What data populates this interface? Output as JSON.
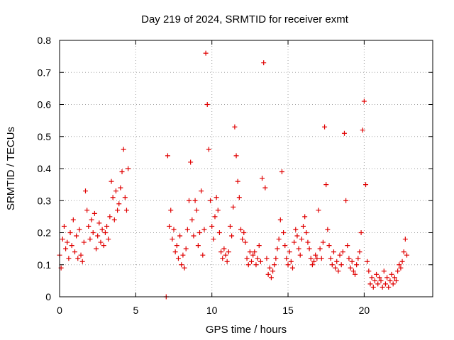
{
  "chart_data": {
    "type": "scatter",
    "title": "Day 219 of 2024, SRMTID for receiver exmt",
    "xlabel": "GPS time / hours",
    "ylabel": "SRMTID / TECUs",
    "xlim": [
      0,
      24.5
    ],
    "ylim": [
      0,
      0.8
    ],
    "xticks": [
      0,
      5,
      10,
      15,
      20
    ],
    "yticks": [
      0,
      0.1,
      0.2,
      0.3,
      0.4,
      0.5,
      0.6,
      0.7,
      0.8
    ],
    "xtick_labels": [
      "0",
      "5",
      "10",
      "15",
      "20"
    ],
    "ytick_labels": [
      "0",
      "0.1",
      "0.2",
      "0.3",
      "0.4",
      "0.5",
      "0.6",
      "0.7",
      "0.8"
    ],
    "grid": true,
    "marker": "+",
    "color": "#e00000",
    "series": [
      {
        "name": "SRMTID",
        "x": [
          0.0,
          0.1,
          0.2,
          0.3,
          0.4,
          0.5,
          0.6,
          0.7,
          0.8,
          0.9,
          1.0,
          1.1,
          1.2,
          1.3,
          1.4,
          1.5,
          1.6,
          1.7,
          1.8,
          1.9,
          2.0,
          2.1,
          2.2,
          2.3,
          2.4,
          2.5,
          2.6,
          2.7,
          2.8,
          2.9,
          3.0,
          3.1,
          3.2,
          3.3,
          3.4,
          3.5,
          3.6,
          3.7,
          3.8,
          3.9,
          4.0,
          4.1,
          4.2,
          4.3,
          4.4,
          4.5,
          7.0,
          7.1,
          7.2,
          7.3,
          7.4,
          7.5,
          7.6,
          7.7,
          7.8,
          7.9,
          8.0,
          8.1,
          8.2,
          8.3,
          8.4,
          8.5,
          8.6,
          8.7,
          8.8,
          8.9,
          9.0,
          9.1,
          9.2,
          9.3,
          9.4,
          9.5,
          9.6,
          9.7,
          9.8,
          9.9,
          10.0,
          10.1,
          10.2,
          10.3,
          10.4,
          10.5,
          10.6,
          10.7,
          10.8,
          10.9,
          11.0,
          11.1,
          11.2,
          11.3,
          11.4,
          11.5,
          11.6,
          11.7,
          11.8,
          11.9,
          12.0,
          12.1,
          12.2,
          12.3,
          12.4,
          12.5,
          12.6,
          12.7,
          12.8,
          12.9,
          13.0,
          13.1,
          13.2,
          13.3,
          13.4,
          13.5,
          13.6,
          13.7,
          13.8,
          13.9,
          14.0,
          14.1,
          14.2,
          14.3,
          14.4,
          14.5,
          14.6,
          14.7,
          14.8,
          14.9,
          15.0,
          15.1,
          15.2,
          15.3,
          15.4,
          15.5,
          15.6,
          15.7,
          15.8,
          15.9,
          16.0,
          16.1,
          16.2,
          16.3,
          16.4,
          16.5,
          16.6,
          16.7,
          16.8,
          16.9,
          17.0,
          17.1,
          17.2,
          17.3,
          17.4,
          17.5,
          17.6,
          17.7,
          17.8,
          17.9,
          18.0,
          18.1,
          18.2,
          18.3,
          18.4,
          18.5,
          18.6,
          18.7,
          18.8,
          18.9,
          19.0,
          19.1,
          19.2,
          19.3,
          19.4,
          19.5,
          19.6,
          19.7,
          19.8,
          19.9,
          20.0,
          20.1,
          20.2,
          20.3,
          20.4,
          20.5,
          20.6,
          20.7,
          20.8,
          20.9,
          21.0,
          21.1,
          21.2,
          21.3,
          21.4,
          21.5,
          21.6,
          21.7,
          21.8,
          21.9,
          22.0,
          22.1,
          22.2,
          22.3,
          22.4,
          22.5,
          22.6,
          22.7,
          22.8
        ],
        "y": [
          0.13,
          0.09,
          0.18,
          0.22,
          0.15,
          0.17,
          0.12,
          0.2,
          0.16,
          0.24,
          0.14,
          0.19,
          0.12,
          0.21,
          0.13,
          0.11,
          0.17,
          0.33,
          0.27,
          0.22,
          0.18,
          0.24,
          0.2,
          0.26,
          0.15,
          0.19,
          0.23,
          0.17,
          0.21,
          0.16,
          0.2,
          0.22,
          0.18,
          0.25,
          0.36,
          0.31,
          0.24,
          0.33,
          0.27,
          0.29,
          0.34,
          0.39,
          0.46,
          0.31,
          0.27,
          0.4,
          0.0,
          0.44,
          0.22,
          0.27,
          0.18,
          0.21,
          0.14,
          0.16,
          0.12,
          0.19,
          0.1,
          0.13,
          0.09,
          0.15,
          0.21,
          0.3,
          0.42,
          0.24,
          0.19,
          0.3,
          0.27,
          0.16,
          0.2,
          0.33,
          0.13,
          0.21,
          0.76,
          0.6,
          0.46,
          0.3,
          0.22,
          0.18,
          0.25,
          0.31,
          0.27,
          0.2,
          0.14,
          0.12,
          0.15,
          0.13,
          0.11,
          0.14,
          0.22,
          0.19,
          0.28,
          0.53,
          0.44,
          0.36,
          0.31,
          0.21,
          0.18,
          0.2,
          0.17,
          0.12,
          0.1,
          0.14,
          0.11,
          0.13,
          0.14,
          0.1,
          0.12,
          0.16,
          0.11,
          0.37,
          0.73,
          0.34,
          0.12,
          0.07,
          0.09,
          0.06,
          0.08,
          0.1,
          0.12,
          0.15,
          0.18,
          0.24,
          0.39,
          0.2,
          0.16,
          0.12,
          0.1,
          0.14,
          0.11,
          0.09,
          0.17,
          0.21,
          0.19,
          0.15,
          0.13,
          0.18,
          0.22,
          0.25,
          0.2,
          0.17,
          0.15,
          0.12,
          0.1,
          0.11,
          0.13,
          0.12,
          0.27,
          0.15,
          0.12,
          0.17,
          0.53,
          0.35,
          0.21,
          0.16,
          0.12,
          0.1,
          0.14,
          0.09,
          0.11,
          0.08,
          0.13,
          0.1,
          0.14,
          0.51,
          0.3,
          0.16,
          0.12,
          0.09,
          0.11,
          0.08,
          0.07,
          0.1,
          0.12,
          0.14,
          0.2,
          0.52,
          0.61,
          0.35,
          0.11,
          0.08,
          0.04,
          0.06,
          0.03,
          0.05,
          0.07,
          0.04,
          0.06,
          0.05,
          0.03,
          0.08,
          0.04,
          0.06,
          0.03,
          0.05,
          0.07,
          0.04,
          0.06,
          0.05,
          0.08,
          0.1,
          0.09,
          0.11,
          0.14,
          0.18,
          0.13
        ]
      }
    ]
  }
}
